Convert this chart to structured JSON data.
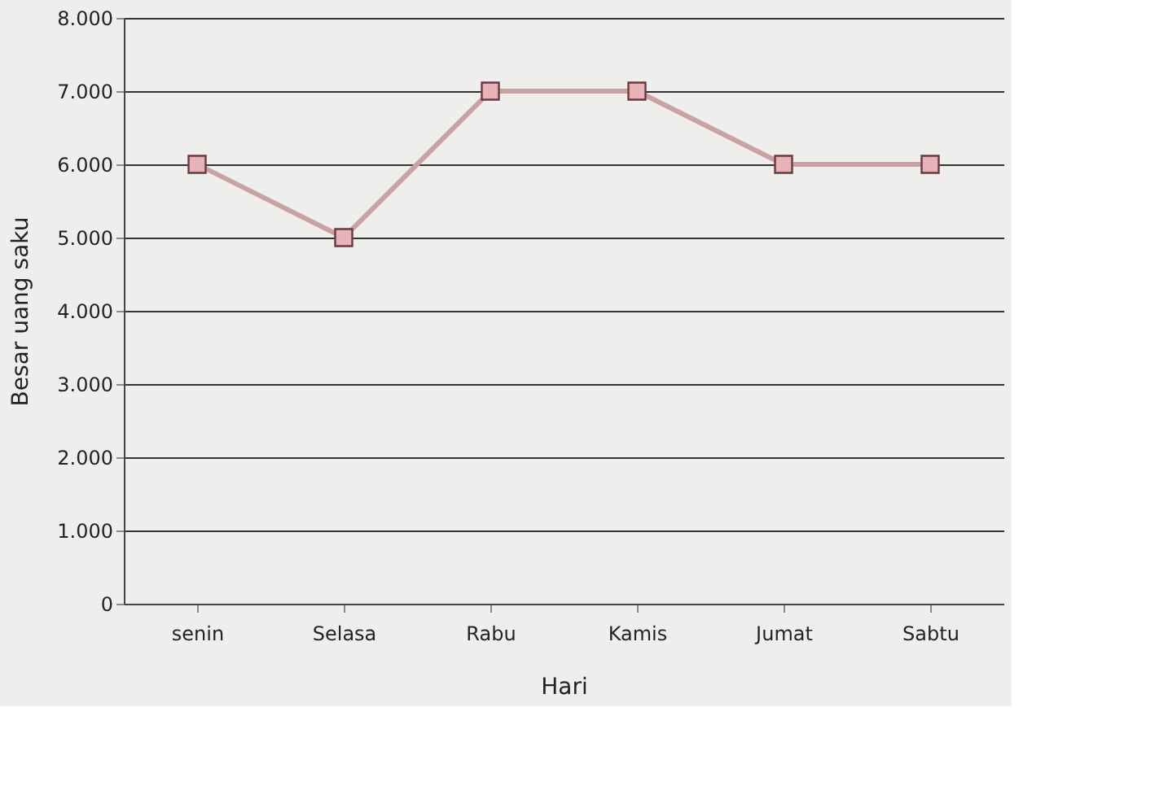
{
  "chart_data": {
    "type": "line",
    "xlabel": "Hari",
    "ylabel": "Besar uang saku",
    "categories": [
      "senin",
      "Selasa",
      "Rabu",
      "Kamis",
      "Jumat",
      "Sabtu"
    ],
    "series": [
      {
        "color": "#c9a3a3",
        "values": [
          6000,
          5000,
          7000,
          7000,
          6000,
          6000
        ]
      }
    ],
    "ylim": [
      0,
      8000
    ],
    "yticks": [
      {
        "value": 0,
        "label": "0"
      },
      {
        "value": 1000,
        "label": "1.000"
      },
      {
        "value": 2000,
        "label": "2.000"
      },
      {
        "value": 3000,
        "label": "3.000"
      },
      {
        "value": 4000,
        "label": "4.000"
      },
      {
        "value": 5000,
        "label": "5.000"
      },
      {
        "value": 6000,
        "label": "6.000"
      },
      {
        "value": 7000,
        "label": "7.000"
      },
      {
        "value": 8000,
        "label": "8.000"
      }
    ],
    "grid": "y",
    "marker": "square",
    "line_style": "solid"
  }
}
